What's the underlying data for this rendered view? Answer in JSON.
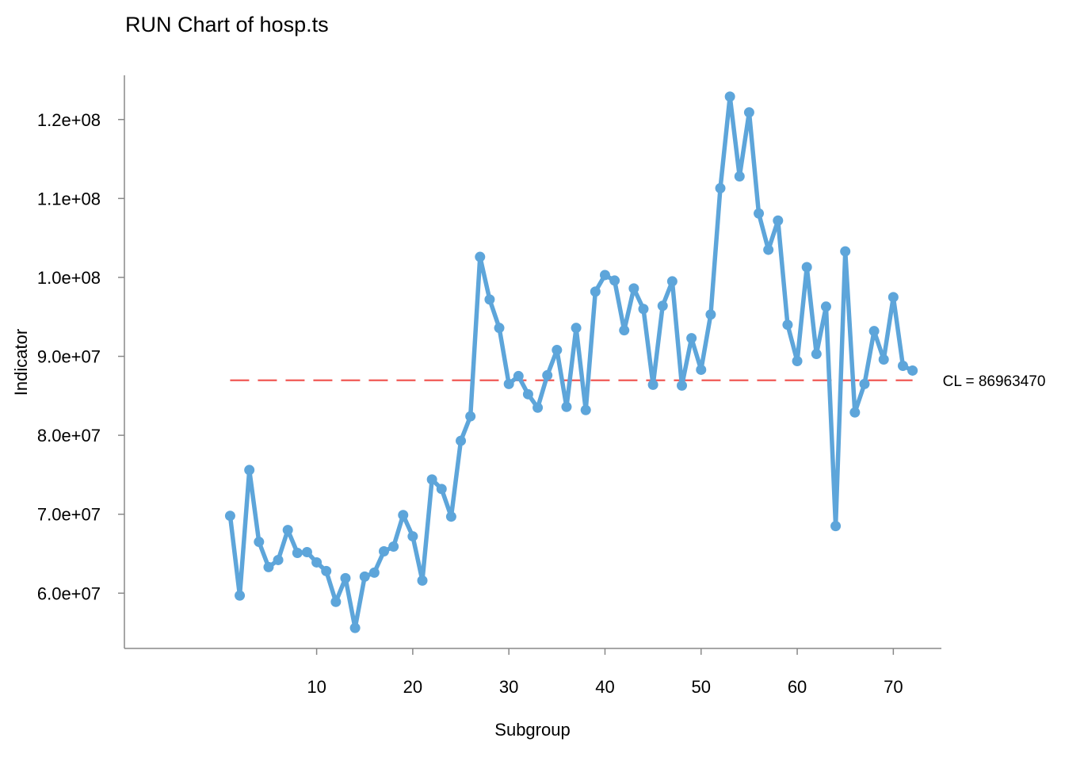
{
  "colors": {
    "series": "#5DA5DA",
    "center_line": "#F15854",
    "axis": "#888888"
  },
  "chart_data": {
    "type": "line",
    "title": "RUN Chart of hosp.ts",
    "xlabel": "Subgroup",
    "ylabel": "Indicator",
    "xlim": [
      -10,
      75
    ],
    "ylim": [
      53000000,
      125600000
    ],
    "x_ticks": [
      10,
      20,
      30,
      40,
      50,
      60,
      70
    ],
    "x_tick_labels": [
      "10",
      "20",
      "30",
      "40",
      "50",
      "60",
      "70"
    ],
    "y_ticks": [
      60000000,
      70000000,
      80000000,
      90000000,
      100000000,
      110000000,
      120000000
    ],
    "y_tick_labels": [
      "6.0e+07",
      "7.0e+07",
      "8.0e+07",
      "9.0e+07",
      "1.0e+08",
      "1.1e+08",
      "1.2e+08"
    ],
    "grid": false,
    "center_line": {
      "value": 86963470,
      "label": "CL = 86963470"
    },
    "series": [
      {
        "x": [
          1,
          2,
          3,
          4,
          5,
          6,
          7,
          8,
          9,
          10,
          11,
          12,
          13,
          14,
          15,
          16,
          17,
          18,
          19,
          20,
          21,
          22,
          23,
          24,
          25,
          26,
          27,
          28,
          29,
          30,
          31,
          32,
          33,
          34,
          35,
          36,
          37,
          38,
          39,
          40,
          41,
          42,
          43,
          44,
          45,
          46,
          47,
          48,
          49,
          50,
          51,
          52,
          53,
          54,
          55,
          56,
          57,
          58,
          59,
          60,
          61,
          62,
          63,
          64,
          65,
          66,
          67,
          68,
          69,
          70,
          71,
          72
        ],
        "values": [
          69800000,
          59700000,
          75600000,
          66500000,
          63300000,
          64200000,
          68000000,
          65100000,
          65200000,
          63900000,
          62800000,
          58900000,
          61900000,
          55600000,
          62100000,
          62600000,
          65300000,
          65900000,
          69900000,
          67200000,
          61600000,
          74400000,
          73200000,
          69700000,
          79300000,
          82400000,
          102600000,
          97200000,
          93600000,
          86500000,
          87500000,
          85200000,
          83500000,
          87600000,
          90800000,
          83600000,
          93600000,
          83200000,
          98200000,
          100300000,
          99600000,
          93300000,
          98600000,
          96000000,
          86400000,
          96400000,
          99500000,
          86300000,
          92300000,
          88300000,
          95300000,
          111300000,
          122900000,
          112800000,
          120900000,
          108100000,
          103500000,
          107200000,
          94000000,
          89400000,
          101300000,
          90300000,
          96300000,
          68500000,
          103300000,
          82900000,
          86500000,
          93200000,
          89600000,
          97500000,
          88800000,
          88200000
        ]
      }
    ]
  }
}
